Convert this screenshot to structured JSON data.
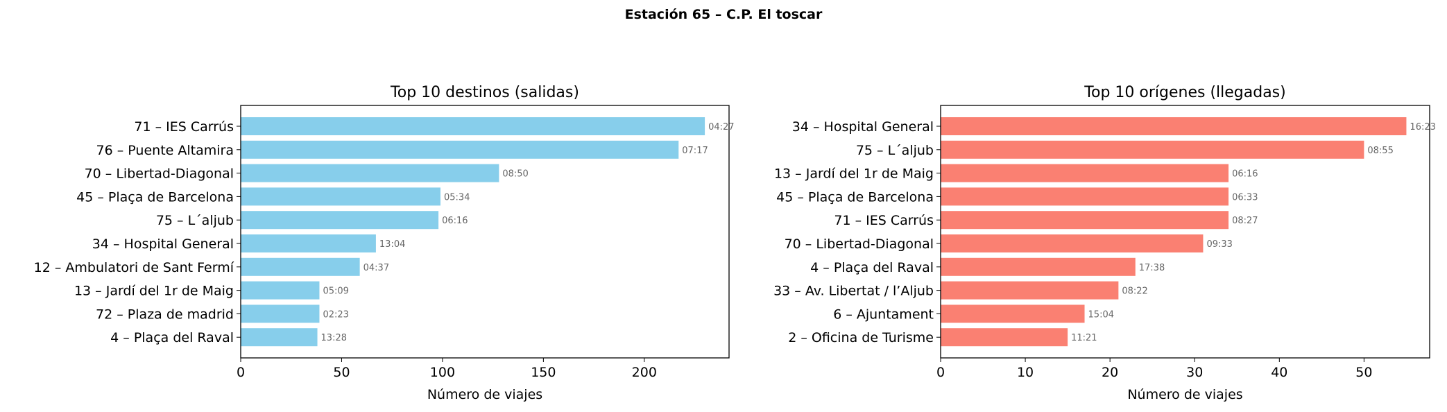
{
  "figure": {
    "suptitle": "Estación 65 – C.P. El toscar"
  },
  "chart_data": [
    {
      "type": "bar",
      "orientation": "horizontal",
      "title": "Top 10 destinos (salidas)",
      "xlabel": "Número de viajes",
      "ylabel": "",
      "xlim": [
        0,
        242
      ],
      "xticks": [
        0,
        50,
        100,
        150,
        200
      ],
      "color": "#87ceeb",
      "categories": [
        "71 – IES Carrús",
        "76 – Puente Altamira",
        "70 – Libertad-Diagonal",
        "45 – Plaça de Barcelona",
        "75 – L´aljub",
        "34 – Hospital General",
        "12 – Ambulatori de Sant Fermí",
        "13 – Jardí del 1r de Maig",
        "72 – Plaza de madrid",
        "4 – Plaça del Raval"
      ],
      "values": [
        230,
        217,
        128,
        99,
        98,
        67,
        59,
        39,
        39,
        38
      ],
      "data_labels": [
        "04:27",
        "07:17",
        "08:50",
        "05:34",
        "06:16",
        "13:04",
        "04:37",
        "05:09",
        "02:23",
        "13:28"
      ]
    },
    {
      "type": "bar",
      "orientation": "horizontal",
      "title": "Top 10 orígenes (llegadas)",
      "xlabel": "Número de viajes",
      "ylabel": "",
      "xlim": [
        0,
        57.75
      ],
      "xticks": [
        0,
        10,
        20,
        30,
        40,
        50
      ],
      "color": "#fa8072",
      "categories": [
        "34 – Hospital General",
        "75 – L´aljub",
        "13 – Jardí del 1r de Maig",
        "45 – Plaça de Barcelona",
        "71 – IES Carrús",
        "70 – Libertad-Diagonal",
        "4 – Plaça del Raval",
        "33 – Av. Libertat / l’Aljub",
        "6 – Ajuntament",
        "2 – Oficina de Turisme"
      ],
      "values": [
        55,
        50,
        34,
        34,
        34,
        31,
        23,
        21,
        17,
        15
      ],
      "data_labels": [
        "16:23",
        "08:55",
        "06:16",
        "06:33",
        "08:27",
        "09:33",
        "17:38",
        "08:22",
        "15:04",
        "11:21"
      ]
    }
  ]
}
